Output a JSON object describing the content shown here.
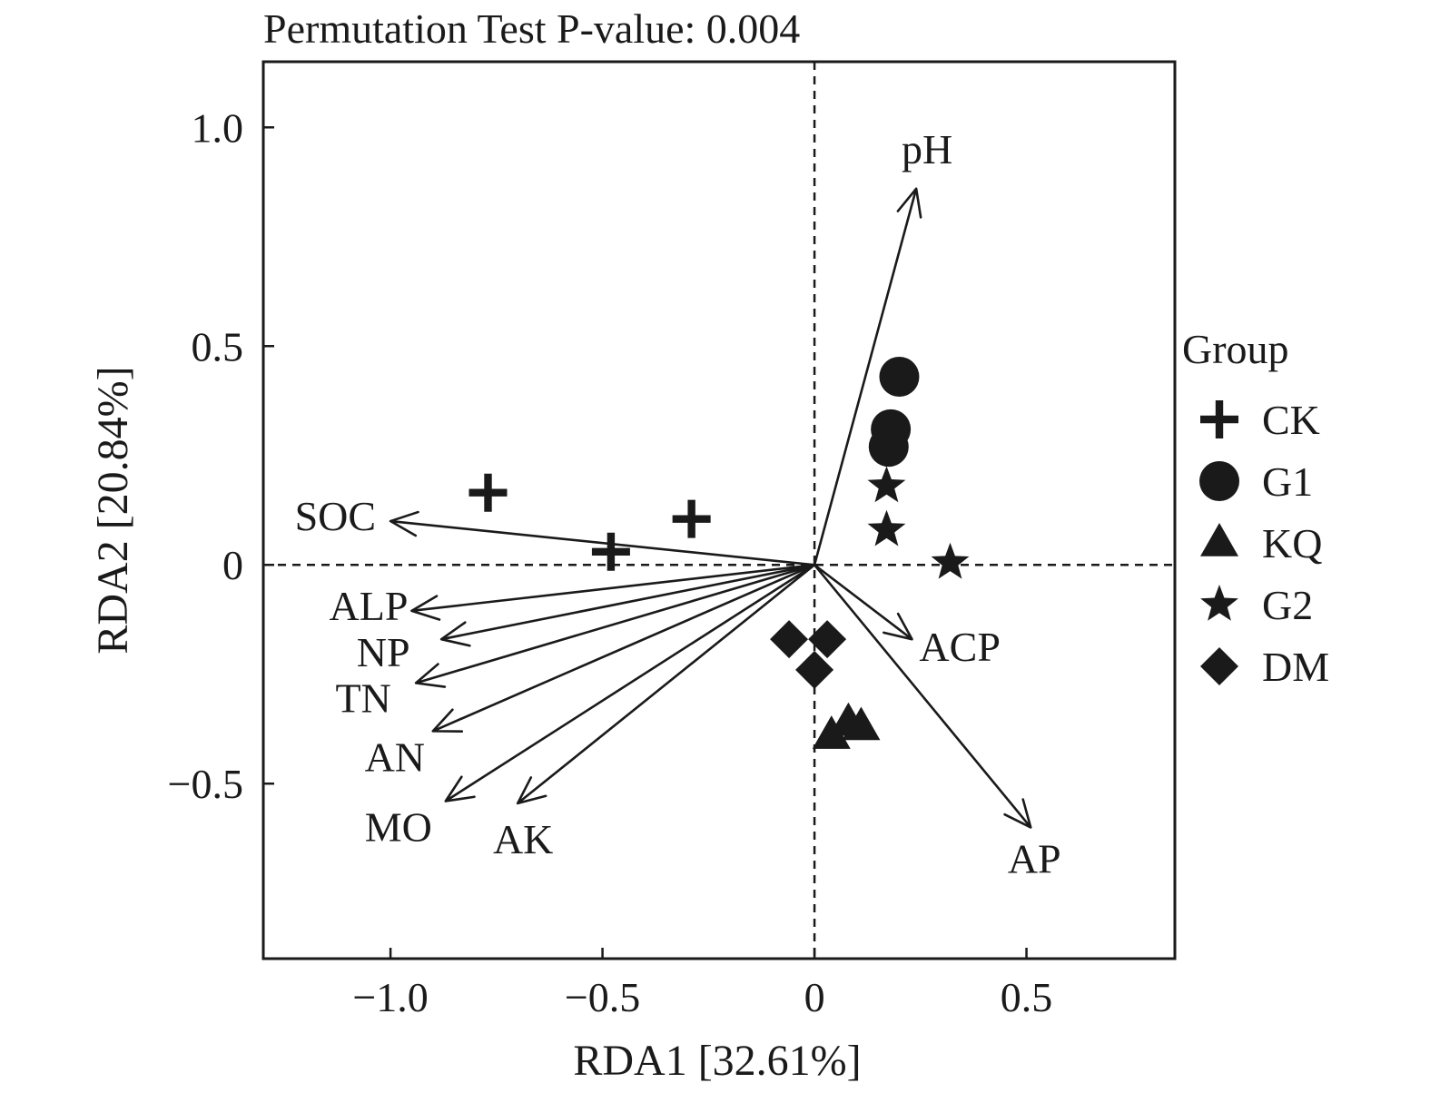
{
  "chart_data": {
    "type": "scatter",
    "subtype": "rda-biplot",
    "title": "Permutation Test P-value: 0.004",
    "xlabel": "RDA1 [32.61%]",
    "ylabel": "RDA2 [20.84%]",
    "xlim": [
      -1.3,
      0.85
    ],
    "ylim": [
      -0.9,
      1.15
    ],
    "xticks": [
      {
        "value": -1.0,
        "label": "−1.0"
      },
      {
        "value": -0.5,
        "label": "−0.5"
      },
      {
        "value": 0,
        "label": "0"
      },
      {
        "value": 0.5,
        "label": "0.5"
      }
    ],
    "yticks": [
      {
        "value": -0.5,
        "label": "−0.5"
      },
      {
        "value": 0,
        "label": "0"
      },
      {
        "value": 0.5,
        "label": "0.5"
      },
      {
        "value": 1.0,
        "label": "1.0"
      }
    ],
    "grid": false,
    "zero_lines": true,
    "legend": {
      "title": "Group",
      "position": "right"
    },
    "series": [
      {
        "name": "CK",
        "marker": "cross",
        "points": [
          [
            -0.77,
            0.165
          ],
          [
            -0.29,
            0.105
          ],
          [
            -0.48,
            0.03
          ]
        ]
      },
      {
        "name": "G1",
        "marker": "circle",
        "points": [
          [
            0.2,
            0.43
          ],
          [
            0.18,
            0.31
          ],
          [
            0.175,
            0.27
          ]
        ]
      },
      {
        "name": "KQ",
        "marker": "triangle",
        "points": [
          [
            0.04,
            -0.39
          ],
          [
            0.08,
            -0.36
          ],
          [
            0.11,
            -0.37
          ]
        ]
      },
      {
        "name": "G2",
        "marker": "star",
        "points": [
          [
            0.17,
            0.18
          ],
          [
            0.17,
            0.08
          ],
          [
            0.32,
            0.005
          ]
        ]
      },
      {
        "name": "DM",
        "marker": "diamond",
        "points": [
          [
            -0.06,
            -0.17
          ],
          [
            0.03,
            -0.17
          ],
          [
            0.0,
            -0.24
          ]
        ]
      }
    ],
    "arrows": [
      {
        "label": "pH",
        "x": 0.24,
        "y": 0.86
      },
      {
        "label": "SOC",
        "x": -1.0,
        "y": 0.1
      },
      {
        "label": "ALP",
        "x": -0.95,
        "y": -0.105
      },
      {
        "label": "NP",
        "x": -0.88,
        "y": -0.17
      },
      {
        "label": "TN",
        "x": -0.94,
        "y": -0.27
      },
      {
        "label": "AN",
        "x": -0.9,
        "y": -0.38
      },
      {
        "label": "MO",
        "x": -0.87,
        "y": -0.54
      },
      {
        "label": "AK",
        "x": -0.7,
        "y": -0.545
      },
      {
        "label": "ACP",
        "x": 0.23,
        "y": -0.17
      },
      {
        "label": "AP",
        "x": 0.51,
        "y": -0.6
      }
    ]
  }
}
